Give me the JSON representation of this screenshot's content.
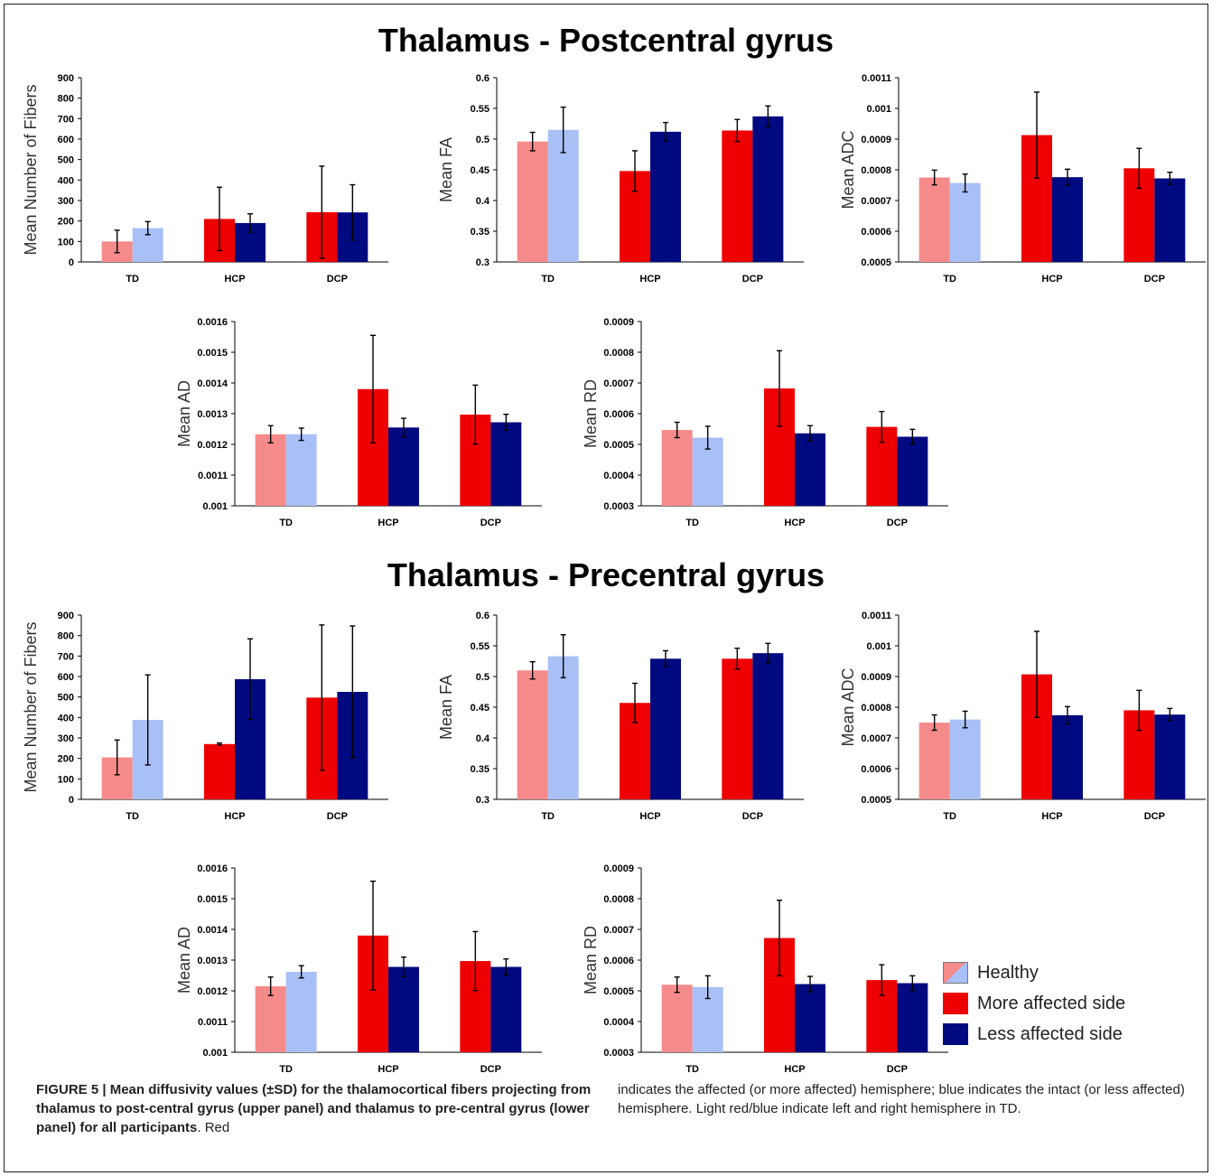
{
  "colors": {
    "healthy_left": "#f58a8a",
    "healthy_right": "#a9c0f7",
    "more_affected": "#ee0000",
    "less_affected": "#000a80"
  },
  "panels": [
    {
      "title": "Thalamus - Postcentral gyrus"
    },
    {
      "title": "Thalamus - Precentral gyrus"
    }
  ],
  "legend": {
    "items": [
      {
        "label": "Healthy",
        "icon": "split-swatch"
      },
      {
        "label": "More affected side"
      },
      {
        "label": "Less affected side"
      }
    ]
  },
  "caption": {
    "bold": "FIGURE 5 | Mean diffusivity values (±SD) for the thalamocortical fibers projecting from thalamus to post-central gyrus (upper panel) and thalamus to pre-central gyrus (lower panel) for all participants",
    "rest_left": ". Red",
    "rest_right": "indicates the affected (or more affected) hemisphere; blue indicates the intact (or less affected) hemisphere. Light red/blue indicate left and right hemisphere in TD."
  },
  "chart_data": [
    {
      "type": "bar",
      "panel": "Thalamus - Postcentral gyrus",
      "ylabel": "Mean Number of Fibers",
      "categories": [
        "TD",
        "HCP",
        "DCP"
      ],
      "ylim": [
        0,
        900
      ],
      "yticks": [
        "0",
        "100",
        "200",
        "300",
        "400",
        "500",
        "600",
        "700",
        "800",
        "900"
      ],
      "series": [
        {
          "values": [
            100,
            210,
            243
          ],
          "err": [
            55,
            155,
            225
          ]
        },
        {
          "values": [
            165,
            190,
            242
          ],
          "err": [
            32,
            45,
            135
          ]
        }
      ]
    },
    {
      "type": "bar",
      "panel": "Thalamus - Postcentral gyrus",
      "ylabel": "Mean FA",
      "categories": [
        "TD",
        "HCP",
        "DCP"
      ],
      "ylim": [
        0.3,
        0.6
      ],
      "yticks": [
        "0.3",
        "0.35",
        "0.4",
        "0.45",
        "0.5",
        "0.55",
        "0.6"
      ],
      "series": [
        {
          "values": [
            0.496,
            0.448,
            0.514
          ],
          "err": [
            0.015,
            0.033,
            0.018
          ]
        },
        {
          "values": [
            0.515,
            0.512,
            0.537
          ],
          "err": [
            0.037,
            0.015,
            0.017
          ]
        }
      ]
    },
    {
      "type": "bar",
      "panel": "Thalamus - Postcentral gyrus",
      "ylabel": "Mean ADC",
      "categories": [
        "TD",
        "HCP",
        "DCP"
      ],
      "ylim": [
        0.0005,
        0.0011
      ],
      "yticks": [
        "0.0005",
        "0.0006",
        "0.0007",
        "0.0008",
        "0.0009",
        "0.001",
        "0.0011"
      ],
      "series": [
        {
          "values": [
            0.000775,
            0.000913,
            0.000805
          ],
          "err": [
            2.4e-05,
            0.00014,
            6.5e-05
          ]
        },
        {
          "values": [
            0.000757,
            0.000776,
            0.000772
          ],
          "err": [
            2.9e-05,
            2.6e-05,
            2e-05
          ]
        }
      ]
    },
    {
      "type": "bar",
      "panel": "Thalamus - Postcentral gyrus",
      "ylabel": "Mean AD",
      "categories": [
        "TD",
        "HCP",
        "DCP"
      ],
      "ylim": [
        0.001,
        0.0016
      ],
      "yticks": [
        "0.001",
        "0.0011",
        "0.0012",
        "0.0013",
        "0.0014",
        "0.0015",
        "0.0016"
      ],
      "series": [
        {
          "values": [
            0.001233,
            0.00138,
            0.001297
          ],
          "err": [
            2.8e-05,
            0.000175,
            9.6e-05
          ]
        },
        {
          "values": [
            0.001233,
            0.001255,
            0.001272
          ],
          "err": [
            2e-05,
            3e-05,
            2.6e-05
          ]
        }
      ]
    },
    {
      "type": "bar",
      "panel": "Thalamus - Postcentral gyrus",
      "ylabel": "Mean RD",
      "categories": [
        "TD",
        "HCP",
        "DCP"
      ],
      "ylim": [
        0.0003,
        0.0009
      ],
      "yticks": [
        "0.0003",
        "0.0004",
        "0.0005",
        "0.0006",
        "0.0007",
        "0.0008",
        "0.0009"
      ],
      "series": [
        {
          "values": [
            0.000547,
            0.000682,
            0.000557
          ],
          "err": [
            2.5e-05,
            0.000123,
            5e-05
          ]
        },
        {
          "values": [
            0.000522,
            0.000536,
            0.000525
          ],
          "err": [
            3.7e-05,
            2.5e-05,
            2.4e-05
          ]
        }
      ]
    },
    {
      "type": "bar",
      "panel": "Thalamus - Precentral gyrus",
      "ylabel": "Mean Number of Fibers",
      "categories": [
        "TD",
        "HCP",
        "DCP"
      ],
      "ylim": [
        0,
        900
      ],
      "yticks": [
        "0",
        "100",
        "200",
        "300",
        "400",
        "500",
        "600",
        "700",
        "800",
        "900"
      ],
      "series": [
        {
          "values": [
            205,
            270,
            497
          ],
          "err": [
            85,
            5,
            355
          ]
        },
        {
          "values": [
            388,
            587,
            525
          ],
          "err": [
            220,
            197,
            322
          ]
        }
      ]
    },
    {
      "type": "bar",
      "panel": "Thalamus - Precentral gyrus",
      "ylabel": "Mean FA",
      "categories": [
        "TD",
        "HCP",
        "DCP"
      ],
      "ylim": [
        0.3,
        0.6
      ],
      "yticks": [
        "0.3",
        "0.35",
        "0.4",
        "0.45",
        "0.5",
        "0.55",
        "0.6"
      ],
      "series": [
        {
          "values": [
            0.51,
            0.457,
            0.529
          ],
          "err": [
            0.014,
            0.032,
            0.017
          ]
        },
        {
          "values": [
            0.533,
            0.529,
            0.538
          ],
          "err": [
            0.035,
            0.013,
            0.016
          ]
        }
      ]
    },
    {
      "type": "bar",
      "panel": "Thalamus - Precentral gyrus",
      "ylabel": "Mean ADC",
      "categories": [
        "TD",
        "HCP",
        "DCP"
      ],
      "ylim": [
        0.0005,
        0.0011
      ],
      "yticks": [
        "0.0005",
        "0.0006",
        "0.0007",
        "0.0008",
        "0.0009",
        "0.001",
        "0.0011"
      ],
      "series": [
        {
          "values": [
            0.00075,
            0.000907,
            0.00079
          ],
          "err": [
            2.5e-05,
            0.00014,
            6.5e-05
          ]
        },
        {
          "values": [
            0.00076,
            0.000774,
            0.000776
          ],
          "err": [
            2.7e-05,
            2.8e-05,
            2e-05
          ]
        }
      ]
    },
    {
      "type": "bar",
      "panel": "Thalamus - Precentral gyrus",
      "ylabel": "Mean AD",
      "categories": [
        "TD",
        "HCP",
        "DCP"
      ],
      "ylim": [
        0.001,
        0.0016
      ],
      "yticks": [
        "0.001",
        "0.0011",
        "0.0012",
        "0.0013",
        "0.0014",
        "0.0015",
        "0.0016"
      ],
      "series": [
        {
          "values": [
            0.001215,
            0.00138,
            0.001297
          ],
          "err": [
            3e-05,
            0.000177,
            9.6e-05
          ]
        },
        {
          "values": [
            0.001262,
            0.001278,
            0.001278
          ],
          "err": [
            2e-05,
            3.2e-05,
            2.6e-05
          ]
        }
      ]
    },
    {
      "type": "bar",
      "panel": "Thalamus - Precentral gyrus",
      "ylabel": "Mean RD",
      "categories": [
        "TD",
        "HCP",
        "DCP"
      ],
      "ylim": [
        0.0003,
        0.0009
      ],
      "yticks": [
        "0.0003",
        "0.0004",
        "0.0005",
        "0.0006",
        "0.0007",
        "0.0008",
        "0.0009"
      ],
      "series": [
        {
          "values": [
            0.00052,
            0.000672,
            0.000535
          ],
          "err": [
            2.5e-05,
            0.000123,
            5e-05
          ]
        },
        {
          "values": [
            0.000512,
            0.000522,
            0.000525
          ],
          "err": [
            3.7e-05,
            2.5e-05,
            2.4e-05
          ]
        }
      ]
    }
  ]
}
